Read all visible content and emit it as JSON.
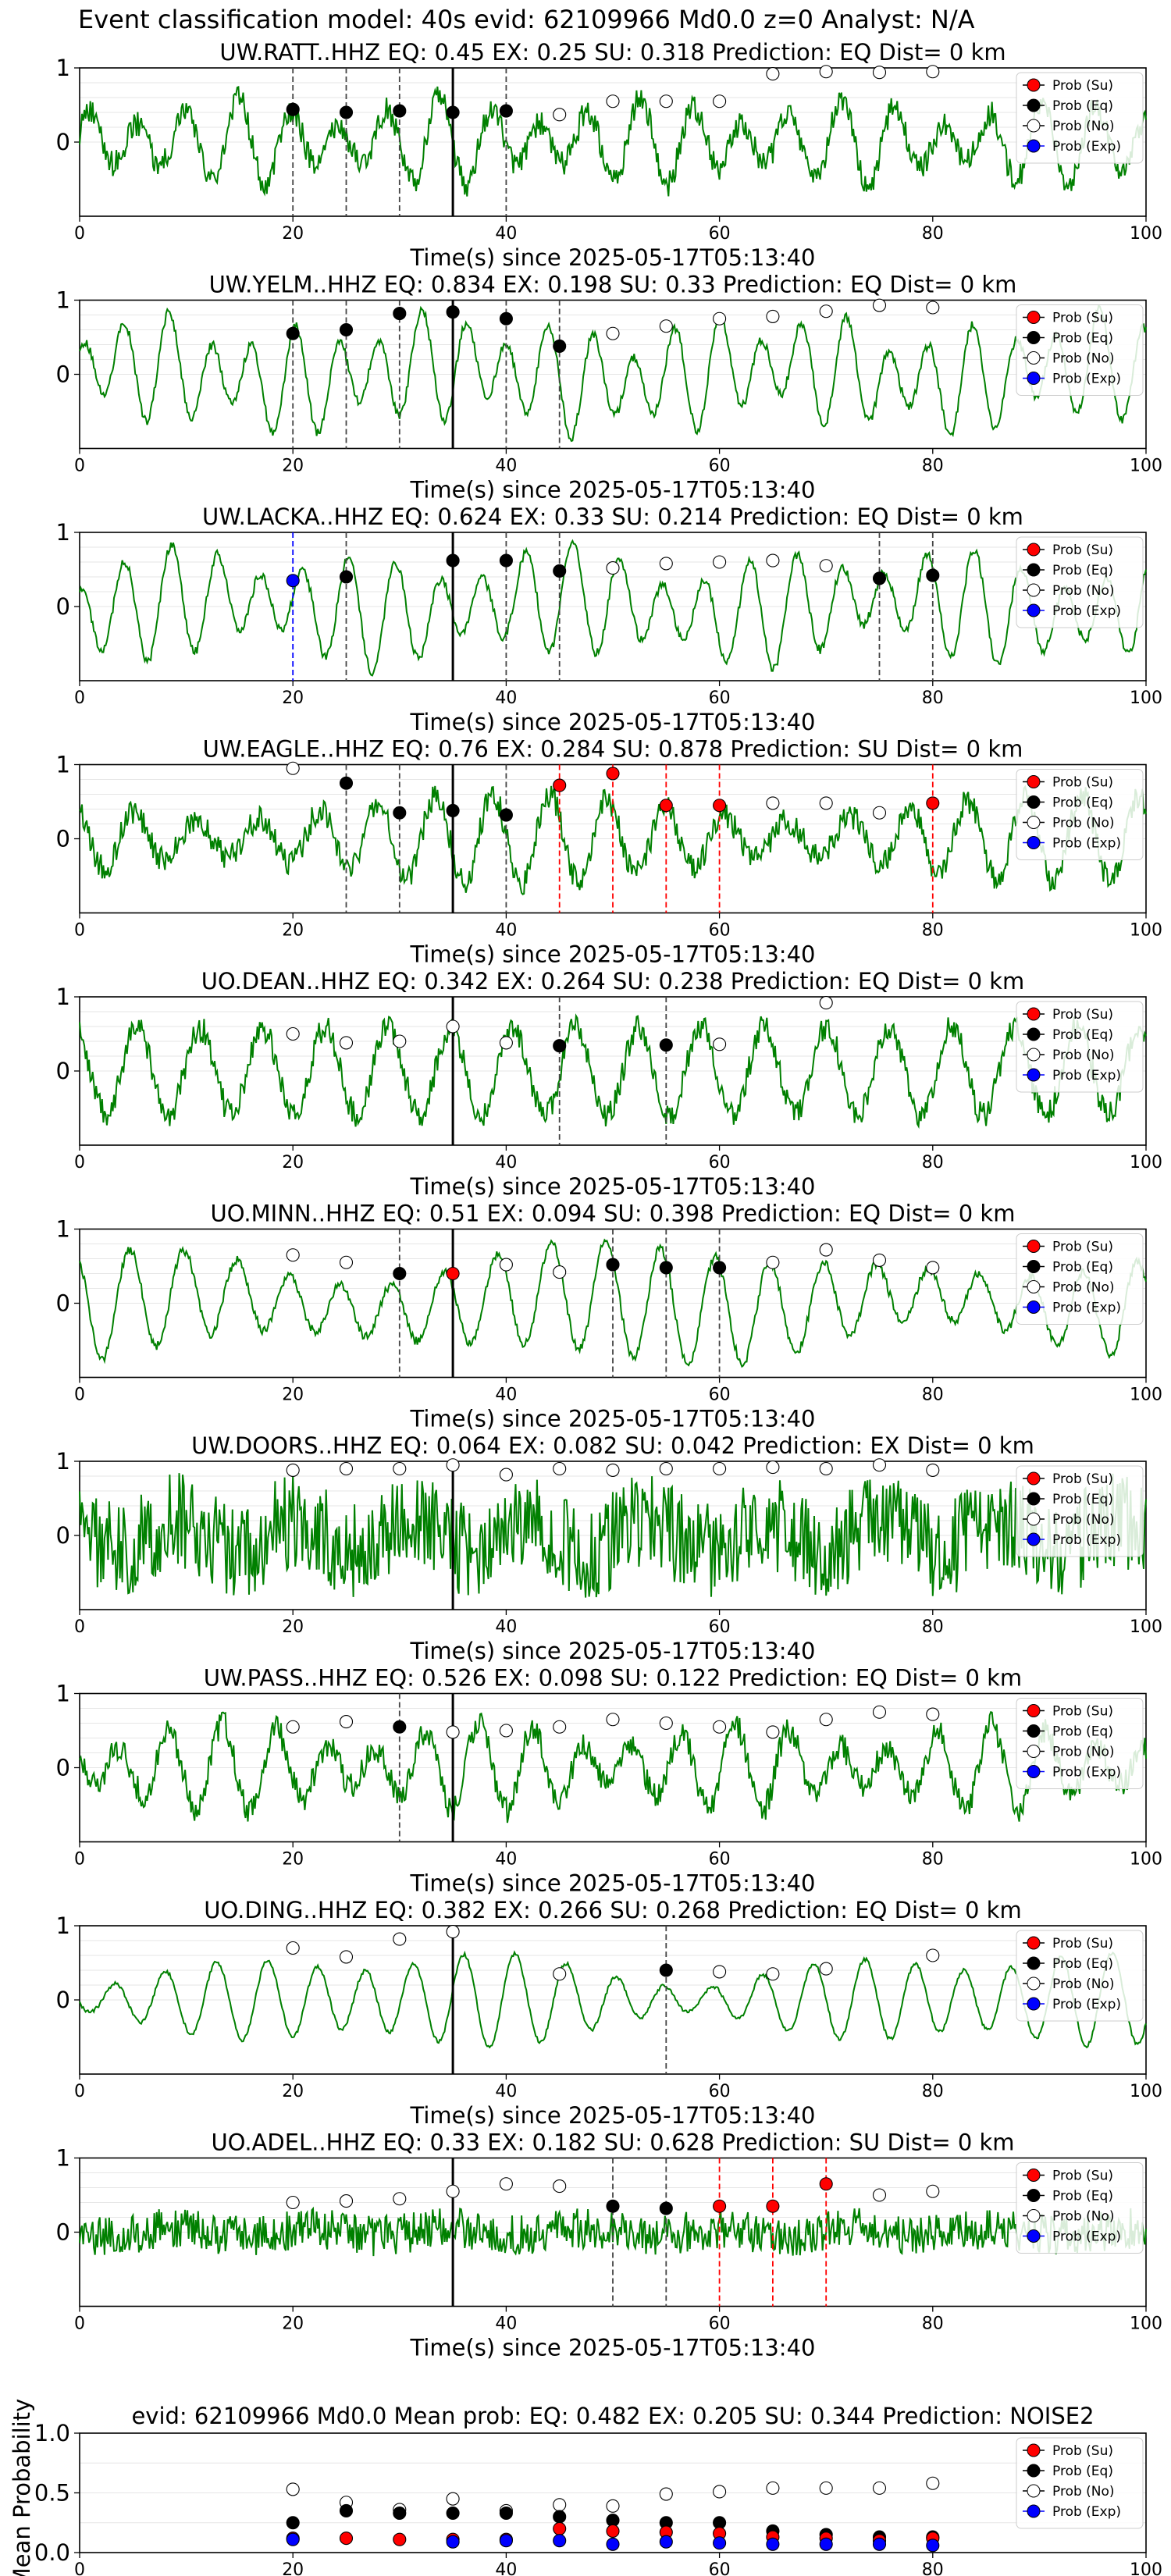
{
  "page": {
    "title": "Event classification model: 40s evid: 62109966 Md0.0 z=0 Analyst: N/A"
  },
  "colors": {
    "waveform": "#008000",
    "su": "#ff0000",
    "eq": "#000000",
    "no": "#ffffff",
    "exp": "#0000ff",
    "arrival_line": "#000000"
  },
  "common": {
    "xlabel": "Time(s) since 2025-05-17T05:13:40",
    "xlim": [
      0,
      100
    ],
    "xticks": [
      0,
      20,
      40,
      60,
      80,
      100
    ],
    "ylim": [
      -1,
      1
    ],
    "yticks": [
      0,
      1
    ],
    "arrival_time": 35,
    "legend": [
      "Prob (Su)",
      "Prob (Eq)",
      "Prob (No)",
      "Prob (Exp)"
    ],
    "legend_location": "top-right"
  },
  "chart_data": [
    {
      "type": "line",
      "station": "UW.RATT..HHZ",
      "title": "UW.RATT..HHZ   EQ: 0.45  EX: 0.25  SU: 0.318   Prediction: EQ    Dist= 0 km",
      "noise_kind": "mixed",
      "points": [
        {
          "x": 20,
          "y": 0.44,
          "c": "eq"
        },
        {
          "x": 25,
          "y": 0.4,
          "c": "eq"
        },
        {
          "x": 30,
          "y": 0.42,
          "c": "eq"
        },
        {
          "x": 35,
          "y": 0.4,
          "c": "eq"
        },
        {
          "x": 40,
          "y": 0.42,
          "c": "eq"
        },
        {
          "x": 45,
          "y": 0.37,
          "c": "no"
        },
        {
          "x": 50,
          "y": 0.55,
          "c": "no"
        },
        {
          "x": 55,
          "y": 0.55,
          "c": "no"
        },
        {
          "x": 60,
          "y": 0.55,
          "c": "no"
        },
        {
          "x": 65,
          "y": 0.92,
          "c": "no"
        },
        {
          "x": 70,
          "y": 0.95,
          "c": "no"
        },
        {
          "x": 75,
          "y": 0.94,
          "c": "no"
        },
        {
          "x": 80,
          "y": 0.95,
          "c": "no"
        }
      ],
      "vlines": [
        {
          "x": 20,
          "c": "eq"
        },
        {
          "x": 25,
          "c": "eq"
        },
        {
          "x": 30,
          "c": "eq"
        },
        {
          "x": 40,
          "c": "eq"
        }
      ]
    },
    {
      "type": "line",
      "station": "UW.YELM..HHZ",
      "title": "UW.YELM..HHZ   EQ: 0.834  EX: 0.198  SU: 0.33   Prediction: EQ    Dist= 0 km",
      "noise_kind": "smooth",
      "points": [
        {
          "x": 20,
          "y": 0.55,
          "c": "eq"
        },
        {
          "x": 25,
          "y": 0.6,
          "c": "eq"
        },
        {
          "x": 30,
          "y": 0.82,
          "c": "eq"
        },
        {
          "x": 35,
          "y": 0.84,
          "c": "eq"
        },
        {
          "x": 40,
          "y": 0.75,
          "c": "eq"
        },
        {
          "x": 45,
          "y": 0.38,
          "c": "eq"
        },
        {
          "x": 50,
          "y": 0.55,
          "c": "no"
        },
        {
          "x": 55,
          "y": 0.65,
          "c": "no"
        },
        {
          "x": 60,
          "y": 0.75,
          "c": "no"
        },
        {
          "x": 65,
          "y": 0.78,
          "c": "no"
        },
        {
          "x": 70,
          "y": 0.85,
          "c": "no"
        },
        {
          "x": 75,
          "y": 0.93,
          "c": "no"
        },
        {
          "x": 80,
          "y": 0.9,
          "c": "no"
        }
      ],
      "vlines": [
        {
          "x": 20,
          "c": "eq"
        },
        {
          "x": 25,
          "c": "eq"
        },
        {
          "x": 30,
          "c": "eq"
        },
        {
          "x": 40,
          "c": "eq"
        },
        {
          "x": 45,
          "c": "eq"
        }
      ]
    },
    {
      "type": "line",
      "station": "UW.LACKA..HHZ",
      "title": "UW.LACKA..HHZ   EQ: 0.624  EX: 0.33  SU: 0.214   Prediction: EQ    Dist= 0 km",
      "noise_kind": "smooth",
      "points": [
        {
          "x": 20,
          "y": 0.35,
          "c": "exp"
        },
        {
          "x": 25,
          "y": 0.4,
          "c": "eq"
        },
        {
          "x": 35,
          "y": 0.62,
          "c": "eq"
        },
        {
          "x": 40,
          "y": 0.62,
          "c": "eq"
        },
        {
          "x": 45,
          "y": 0.48,
          "c": "eq"
        },
        {
          "x": 50,
          "y": 0.52,
          "c": "no"
        },
        {
          "x": 55,
          "y": 0.58,
          "c": "no"
        },
        {
          "x": 60,
          "y": 0.6,
          "c": "no"
        },
        {
          "x": 65,
          "y": 0.62,
          "c": "no"
        },
        {
          "x": 70,
          "y": 0.55,
          "c": "no"
        },
        {
          "x": 75,
          "y": 0.38,
          "c": "eq"
        },
        {
          "x": 80,
          "y": 0.42,
          "c": "eq"
        }
      ],
      "vlines": [
        {
          "x": 20,
          "c": "exp"
        },
        {
          "x": 25,
          "c": "eq"
        },
        {
          "x": 40,
          "c": "eq"
        },
        {
          "x": 45,
          "c": "eq"
        },
        {
          "x": 75,
          "c": "eq"
        },
        {
          "x": 80,
          "c": "eq"
        }
      ]
    },
    {
      "type": "line",
      "station": "UW.EAGLE..HHZ",
      "title": "UW.EAGLE..HHZ   EQ: 0.76  EX: 0.284  SU: 0.878   Prediction: SU    Dist= 0 km",
      "noise_kind": "mixed",
      "points": [
        {
          "x": 20,
          "y": 0.95,
          "c": "no"
        },
        {
          "x": 25,
          "y": 0.75,
          "c": "eq"
        },
        {
          "x": 30,
          "y": 0.35,
          "c": "eq"
        },
        {
          "x": 35,
          "y": 0.38,
          "c": "eq"
        },
        {
          "x": 40,
          "y": 0.32,
          "c": "eq"
        },
        {
          "x": 45,
          "y": 0.72,
          "c": "su"
        },
        {
          "x": 50,
          "y": 0.88,
          "c": "su"
        },
        {
          "x": 55,
          "y": 0.45,
          "c": "su"
        },
        {
          "x": 60,
          "y": 0.45,
          "c": "su"
        },
        {
          "x": 65,
          "y": 0.48,
          "c": "no"
        },
        {
          "x": 70,
          "y": 0.48,
          "c": "no"
        },
        {
          "x": 75,
          "y": 0.35,
          "c": "no"
        },
        {
          "x": 80,
          "y": 0.48,
          "c": "su"
        }
      ],
      "vlines": [
        {
          "x": 25,
          "c": "eq"
        },
        {
          "x": 30,
          "c": "eq"
        },
        {
          "x": 40,
          "c": "eq"
        },
        {
          "x": 45,
          "c": "su"
        },
        {
          "x": 50,
          "c": "su"
        },
        {
          "x": 55,
          "c": "su"
        },
        {
          "x": 60,
          "c": "su"
        },
        {
          "x": 80,
          "c": "su"
        }
      ]
    },
    {
      "type": "line",
      "station": "UO.DEAN..HHZ",
      "title": "UO.DEAN..HHZ   EQ: 0.342  EX: 0.264  SU: 0.238   Prediction: EQ    Dist= 0 km",
      "noise_kind": "mixed",
      "points": [
        {
          "x": 20,
          "y": 0.5,
          "c": "no"
        },
        {
          "x": 25,
          "y": 0.38,
          "c": "no"
        },
        {
          "x": 30,
          "y": 0.4,
          "c": "no"
        },
        {
          "x": 35,
          "y": 0.6,
          "c": "no"
        },
        {
          "x": 40,
          "y": 0.38,
          "c": "no"
        },
        {
          "x": 45,
          "y": 0.34,
          "c": "eq"
        },
        {
          "x": 55,
          "y": 0.35,
          "c": "eq"
        },
        {
          "x": 60,
          "y": 0.36,
          "c": "no"
        },
        {
          "x": 70,
          "y": 0.92,
          "c": "no"
        }
      ],
      "vlines": [
        {
          "x": 45,
          "c": "eq"
        },
        {
          "x": 55,
          "c": "eq"
        }
      ]
    },
    {
      "type": "line",
      "station": "UO.MINN..HHZ",
      "title": "UO.MINN..HHZ   EQ: 0.51  EX: 0.094  SU: 0.398   Prediction: EQ    Dist= 0 km",
      "noise_kind": "smooth",
      "points": [
        {
          "x": 20,
          "y": 0.65,
          "c": "no"
        },
        {
          "x": 25,
          "y": 0.55,
          "c": "no"
        },
        {
          "x": 30,
          "y": 0.4,
          "c": "eq"
        },
        {
          "x": 35,
          "y": 0.4,
          "c": "su"
        },
        {
          "x": 40,
          "y": 0.52,
          "c": "no"
        },
        {
          "x": 45,
          "y": 0.42,
          "c": "no"
        },
        {
          "x": 50,
          "y": 0.52,
          "c": "eq"
        },
        {
          "x": 55,
          "y": 0.48,
          "c": "eq"
        },
        {
          "x": 60,
          "y": 0.48,
          "c": "eq"
        },
        {
          "x": 65,
          "y": 0.55,
          "c": "no"
        },
        {
          "x": 70,
          "y": 0.72,
          "c": "no"
        },
        {
          "x": 75,
          "y": 0.58,
          "c": "no"
        },
        {
          "x": 80,
          "y": 0.48,
          "c": "no"
        }
      ],
      "vlines": [
        {
          "x": 30,
          "c": "eq"
        },
        {
          "x": 50,
          "c": "eq"
        },
        {
          "x": 55,
          "c": "eq"
        },
        {
          "x": 60,
          "c": "eq"
        }
      ]
    },
    {
      "type": "line",
      "station": "UW.DOORS..HHZ",
      "title": "UW.DOORS..HHZ   EQ: 0.064  EX: 0.082  SU: 0.042   Prediction: EX    Dist= 0 km",
      "noise_kind": "noisy",
      "points": [
        {
          "x": 20,
          "y": 0.88,
          "c": "no"
        },
        {
          "x": 25,
          "y": 0.9,
          "c": "no"
        },
        {
          "x": 30,
          "y": 0.9,
          "c": "no"
        },
        {
          "x": 35,
          "y": 0.95,
          "c": "no"
        },
        {
          "x": 40,
          "y": 0.82,
          "c": "no"
        },
        {
          "x": 45,
          "y": 0.9,
          "c": "no"
        },
        {
          "x": 50,
          "y": 0.88,
          "c": "no"
        },
        {
          "x": 55,
          "y": 0.9,
          "c": "no"
        },
        {
          "x": 60,
          "y": 0.9,
          "c": "no"
        },
        {
          "x": 65,
          "y": 0.92,
          "c": "no"
        },
        {
          "x": 70,
          "y": 0.9,
          "c": "no"
        },
        {
          "x": 75,
          "y": 0.95,
          "c": "no"
        },
        {
          "x": 80,
          "y": 0.88,
          "c": "no"
        }
      ],
      "vlines": []
    },
    {
      "type": "line",
      "station": "UW.PASS..HHZ",
      "title": "UW.PASS..HHZ   EQ: 0.526  EX: 0.098  SU: 0.122   Prediction: EQ    Dist= 0 km",
      "noise_kind": "mixed",
      "points": [
        {
          "x": 20,
          "y": 0.55,
          "c": "no"
        },
        {
          "x": 25,
          "y": 0.62,
          "c": "no"
        },
        {
          "x": 30,
          "y": 0.55,
          "c": "eq"
        },
        {
          "x": 35,
          "y": 0.48,
          "c": "no"
        },
        {
          "x": 40,
          "y": 0.5,
          "c": "no"
        },
        {
          "x": 45,
          "y": 0.55,
          "c": "no"
        },
        {
          "x": 50,
          "y": 0.65,
          "c": "no"
        },
        {
          "x": 55,
          "y": 0.6,
          "c": "no"
        },
        {
          "x": 60,
          "y": 0.55,
          "c": "no"
        },
        {
          "x": 65,
          "y": 0.48,
          "c": "no"
        },
        {
          "x": 70,
          "y": 0.65,
          "c": "no"
        },
        {
          "x": 75,
          "y": 0.75,
          "c": "no"
        },
        {
          "x": 80,
          "y": 0.72,
          "c": "no"
        }
      ],
      "vlines": [
        {
          "x": 30,
          "c": "eq"
        }
      ]
    },
    {
      "type": "line",
      "station": "UO.DING..HHZ",
      "title": "UO.DING..HHZ   EQ: 0.382  EX: 0.266  SU: 0.268   Prediction: EQ    Dist= 0 km",
      "noise_kind": "sparse",
      "points": [
        {
          "x": 20,
          "y": 0.7,
          "c": "no"
        },
        {
          "x": 25,
          "y": 0.58,
          "c": "no"
        },
        {
          "x": 30,
          "y": 0.82,
          "c": "no"
        },
        {
          "x": 35,
          "y": 0.92,
          "c": "no"
        },
        {
          "x": 45,
          "y": 0.35,
          "c": "no"
        },
        {
          "x": 55,
          "y": 0.4,
          "c": "eq"
        },
        {
          "x": 60,
          "y": 0.38,
          "c": "no"
        },
        {
          "x": 65,
          "y": 0.35,
          "c": "no"
        },
        {
          "x": 70,
          "y": 0.42,
          "c": "no"
        },
        {
          "x": 80,
          "y": 0.6,
          "c": "no"
        }
      ],
      "vlines": [
        {
          "x": 55,
          "c": "eq"
        }
      ]
    },
    {
      "type": "line",
      "station": "UO.ADEL..HHZ",
      "title": "UO.ADEL..HHZ   EQ: 0.33  EX: 0.182  SU: 0.628   Prediction: SU    Dist= 0 km",
      "noise_kind": "noisy_low",
      "points": [
        {
          "x": 20,
          "y": 0.4,
          "c": "no"
        },
        {
          "x": 25,
          "y": 0.42,
          "c": "no"
        },
        {
          "x": 30,
          "y": 0.45,
          "c": "no"
        },
        {
          "x": 35,
          "y": 0.55,
          "c": "no"
        },
        {
          "x": 40,
          "y": 0.65,
          "c": "no"
        },
        {
          "x": 45,
          "y": 0.62,
          "c": "no"
        },
        {
          "x": 50,
          "y": 0.35,
          "c": "eq"
        },
        {
          "x": 55,
          "y": 0.32,
          "c": "eq"
        },
        {
          "x": 60,
          "y": 0.35,
          "c": "su"
        },
        {
          "x": 65,
          "y": 0.35,
          "c": "su"
        },
        {
          "x": 70,
          "y": 0.65,
          "c": "su"
        },
        {
          "x": 75,
          "y": 0.5,
          "c": "no"
        },
        {
          "x": 80,
          "y": 0.55,
          "c": "no"
        }
      ],
      "vlines": [
        {
          "x": 50,
          "c": "eq"
        },
        {
          "x": 55,
          "c": "eq"
        },
        {
          "x": 60,
          "c": "su"
        },
        {
          "x": 65,
          "c": "su"
        },
        {
          "x": 70,
          "c": "su"
        }
      ]
    },
    {
      "type": "scatter",
      "station": "mean",
      "title": "evid: 62109966   Md0.0   Mean prob:   EQ: 0.482   EX: 0.205   SU: 0.344   Prediction: NOISE2",
      "ylabel": "Mean Probability",
      "ylim": [
        0,
        1
      ],
      "yticks": [
        "0.0",
        "0.5",
        "1.0"
      ],
      "ytick_values": [
        0,
        0.5,
        1.0
      ],
      "x": [
        20,
        25,
        30,
        35,
        40,
        45,
        50,
        55,
        60,
        65,
        70,
        75,
        80
      ],
      "series": [
        {
          "name": "Prob (No)",
          "c": "no",
          "values": [
            0.53,
            0.42,
            0.36,
            0.45,
            0.35,
            0.4,
            0.39,
            0.49,
            0.51,
            0.54,
            0.54,
            0.54,
            0.58
          ]
        },
        {
          "name": "Prob (Eq)",
          "c": "eq",
          "values": [
            0.25,
            0.35,
            0.33,
            0.33,
            0.33,
            0.3,
            0.27,
            0.25,
            0.25,
            0.18,
            0.15,
            0.13,
            0.13
          ]
        },
        {
          "name": "Prob (Su)",
          "c": "su",
          "values": [
            0.12,
            0.12,
            0.11,
            0.11,
            0.11,
            0.2,
            0.18,
            0.17,
            0.16,
            0.13,
            0.12,
            0.1,
            0.12
          ]
        },
        {
          "name": "Prob (Exp)",
          "c": "exp",
          "values": [
            0.11,
            null,
            null,
            0.09,
            0.1,
            0.1,
            0.07,
            0.09,
            0.08,
            0.07,
            0.07,
            0.07,
            0.06
          ]
        }
      ]
    }
  ]
}
